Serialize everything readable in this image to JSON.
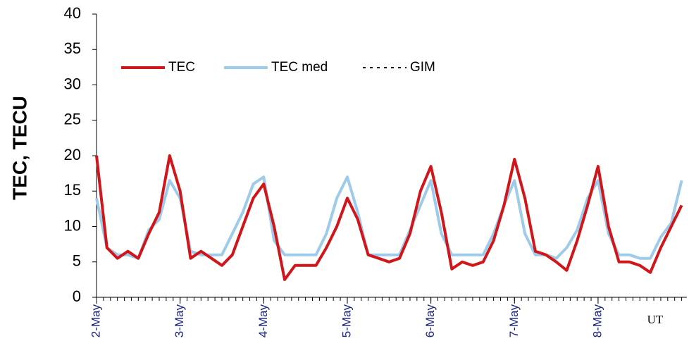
{
  "chart_data": {
    "type": "line",
    "y_label": "TEC, TECU",
    "x_label": "UT",
    "x": [
      0,
      3,
      6,
      9,
      12,
      15,
      18,
      21,
      24,
      27,
      30,
      33,
      36,
      39,
      42,
      45,
      48,
      51,
      54,
      57,
      60,
      63,
      66,
      69,
      72,
      75,
      78,
      81,
      84,
      87,
      90,
      93,
      96,
      99,
      102,
      105,
      108,
      111,
      114,
      117,
      120,
      123,
      126,
      129,
      132,
      135,
      138,
      141,
      144,
      147,
      150,
      153,
      156,
      159,
      162,
      165,
      168
    ],
    "series": [
      {
        "name": "TEC",
        "color": "#d0161a",
        "style": "solid",
        "values": [
          20,
          7,
          5.5,
          6.5,
          5.5,
          9,
          12,
          20,
          15,
          5.5,
          6.5,
          5.5,
          4.5,
          6,
          10,
          14,
          16,
          10,
          2.5,
          4.5,
          4.5,
          4.5,
          7,
          10,
          14,
          11,
          6,
          5.5,
          5,
          5.5,
          9,
          15,
          18.5,
          12,
          4,
          5,
          4.5,
          5,
          8,
          13,
          19.5,
          14,
          6.5,
          6,
          5,
          3.8,
          8,
          13,
          18.5,
          10,
          5,
          5,
          4.5,
          3.5,
          7,
          10,
          13
        ]
      },
      {
        "name": "TEC med",
        "color": "#9fcbea",
        "style": "solid",
        "values": [
          14,
          7,
          6,
          6,
          5.5,
          9.5,
          11,
          16.5,
          14,
          6.5,
          6,
          6,
          6,
          9,
          12,
          16,
          17,
          8,
          6,
          6,
          6,
          6,
          9,
          14,
          17,
          12,
          6,
          6,
          6,
          6,
          9.5,
          13,
          16.5,
          9,
          6,
          6,
          6,
          6,
          9,
          13,
          16.5,
          9,
          6,
          6,
          5.5,
          7,
          9.5,
          14,
          16.5,
          9,
          6,
          6,
          5.5,
          5.5,
          8.5,
          10.5,
          16.5
        ]
      },
      {
        "name": "GIM",
        "color": "#000000",
        "style": "dotted",
        "values": [
          null,
          null,
          null,
          null,
          null,
          null,
          null,
          null,
          null,
          null,
          null,
          null,
          null,
          null,
          null,
          null,
          null,
          null,
          null,
          null,
          null,
          null,
          null,
          null,
          null,
          null,
          null,
          null,
          null,
          null,
          null,
          null,
          null,
          null,
          null,
          null,
          null,
          null,
          null,
          null,
          null,
          null,
          null,
          null,
          null,
          null,
          null,
          null,
          null,
          null,
          null,
          null,
          null,
          null,
          null,
          null,
          null
        ]
      }
    ],
    "xlim": [
      0,
      169.5
    ],
    "xticks": [
      {
        "value": 0,
        "label": "2-May"
      },
      {
        "value": 24,
        "label": "3-May"
      },
      {
        "value": 48,
        "label": "4-May"
      },
      {
        "value": 72,
        "label": "5-May"
      },
      {
        "value": 96,
        "label": "6-May"
      },
      {
        "value": 120,
        "label": "7-May"
      },
      {
        "value": 144,
        "label": "8-May"
      }
    ],
    "ylim": [
      0,
      40
    ],
    "yticks": [
      0,
      5,
      10,
      15,
      20,
      25,
      30,
      35,
      40
    ],
    "grid": false,
    "legend": "top-left"
  }
}
